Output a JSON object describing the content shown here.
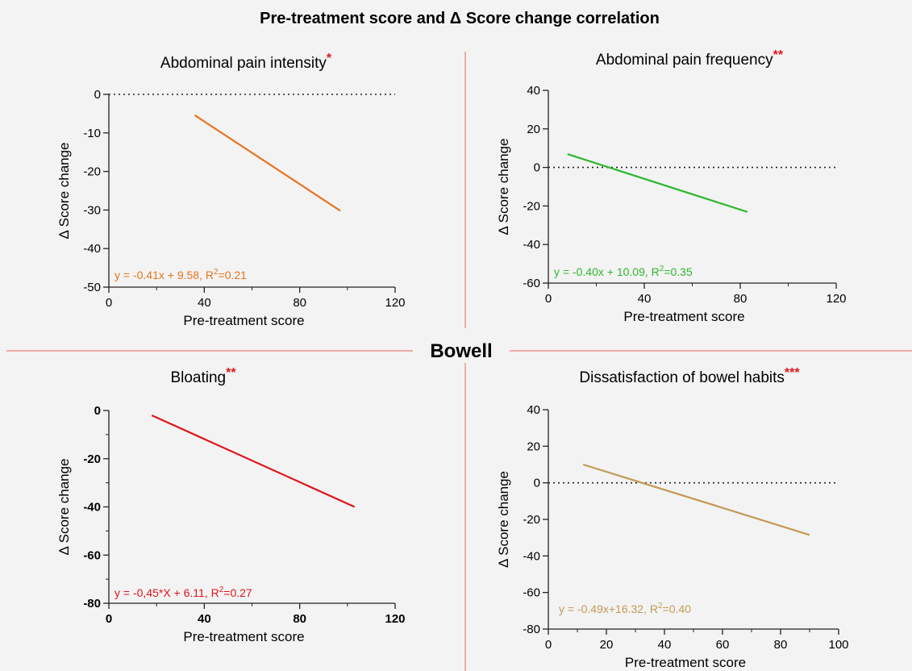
{
  "figure": {
    "title": "Pre-treatment score and Δ Score change correlation",
    "section_label": "Bowell",
    "divider_color": "#e8807a",
    "background": "#f3f3f3"
  },
  "chart_data": [
    {
      "type": "line",
      "title": "Abdominal pain intensity",
      "significance": "*",
      "xlabel": "Pre-treatment score",
      "ylabel": "Δ Score change",
      "xlim": [
        0,
        120
      ],
      "ylim": [
        -50,
        0
      ],
      "xticks": [
        0,
        40,
        80,
        120
      ],
      "xticks_minor": [
        20,
        60,
        100
      ],
      "yticks": [
        -50,
        -40,
        -30,
        -20,
        -10,
        0
      ],
      "yticks_minor": [],
      "x": [
        36,
        97
      ],
      "y": [
        -5.4,
        -30.2
      ],
      "reference_line_y": 0,
      "reference_line_x_end": 120,
      "equation": "y = -0.41x + 9.58, R",
      "equation_tail": "=0.21",
      "color": "#e8731e",
      "bold_ticks": false
    },
    {
      "type": "line",
      "title": "Abdominal pain frequency",
      "significance": "**",
      "xlabel": "Pre-treatment score",
      "ylabel": "Δ Score change",
      "xlim": [
        0,
        120
      ],
      "ylim": [
        -60,
        40
      ],
      "xticks": [
        0,
        40,
        80,
        120
      ],
      "xticks_minor": [
        20,
        60,
        100
      ],
      "yticks": [
        -60,
        -40,
        -20,
        0,
        20,
        40
      ],
      "yticks_minor": [],
      "x": [
        8,
        83
      ],
      "y": [
        6.9,
        -23.1
      ],
      "reference_line_y": 0,
      "reference_line_x_end": 120,
      "equation": "y = -0.40x + 10.09, R",
      "equation_tail": "=0.35",
      "color": "#2db82d",
      "bold_ticks": false
    },
    {
      "type": "line",
      "title": "Bloating",
      "significance": "**",
      "xlabel": "Pre-treatment score",
      "ylabel": "Δ Score change",
      "xlim": [
        0,
        120
      ],
      "ylim": [
        -80,
        0
      ],
      "xticks": [
        0,
        40,
        80,
        120
      ],
      "xticks_minor": [
        20,
        60,
        100
      ],
      "yticks": [
        -80,
        -60,
        -40,
        -20,
        0
      ],
      "yticks_minor": [
        -70,
        -50,
        -30,
        -10
      ],
      "x": [
        18,
        103
      ],
      "y": [
        -2,
        -40
      ],
      "reference_line_y": null,
      "reference_line_x_end": null,
      "equation": "y = -0,45*X + 6.11, R",
      "equation_tail": "=0.27",
      "color": "#e0151b",
      "bold_ticks": true
    },
    {
      "type": "line",
      "title": "Dissatisfaction of bowel habits",
      "significance": "***",
      "xlabel": "Pre-treatment score",
      "ylabel": "Δ Score change",
      "xlim": [
        0,
        100
      ],
      "ylim": [
        -80,
        40
      ],
      "xticks": [
        0,
        20,
        40,
        60,
        80,
        100
      ],
      "xticks_minor": [
        10,
        30,
        50,
        70,
        90
      ],
      "yticks": [
        -80,
        -60,
        -40,
        -20,
        0,
        20,
        40
      ],
      "yticks_minor": [],
      "x": [
        12,
        90
      ],
      "y": [
        10,
        -28.5
      ],
      "reference_line_y": 0,
      "reference_line_x_end": 100,
      "equation": "y = -0.49x+16.32, R",
      "equation_tail": "=0.40",
      "color": "#c39a55",
      "bold_ticks": false
    }
  ]
}
